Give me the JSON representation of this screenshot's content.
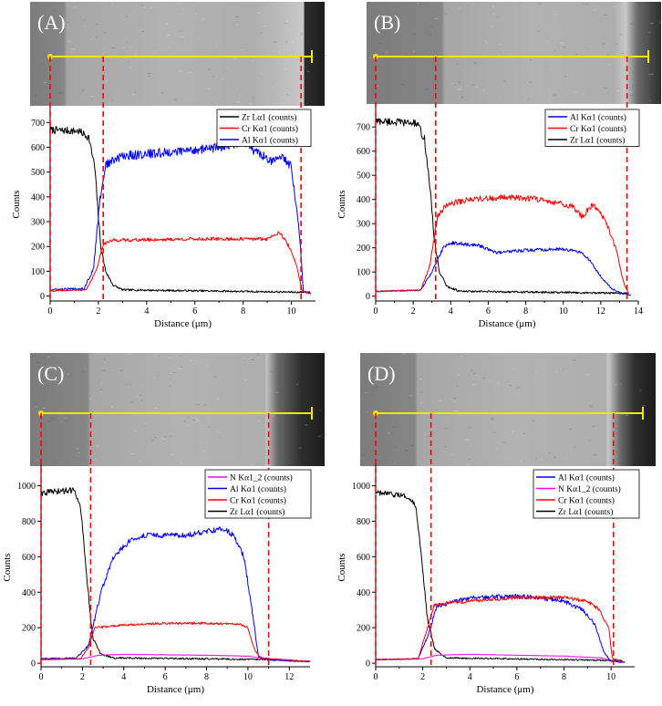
{
  "chart_data": [
    {
      "type": "line",
      "panel_label": "(A)",
      "xlabel": "Distance (μm)",
      "ylabel": "Counts",
      "xlim": [
        0,
        11
      ],
      "ylim": [
        -20,
        760
      ],
      "xticks": [
        0,
        2,
        4,
        6,
        8,
        10
      ],
      "yticks": [
        0,
        100,
        200,
        300,
        400,
        500,
        600,
        700
      ],
      "markers_x": [
        0,
        2.2,
        10.4
      ],
      "legend": [
        {
          "name": "Zr Lα1 (counts)",
          "color": "#000000"
        },
        {
          "name": "Cr Kα1 (counts)",
          "color": "#ff0000"
        },
        {
          "name": "Al Kα1 (counts)",
          "color": "#0000ff"
        }
      ],
      "series": [
        {
          "name": "Zr Lα1 (counts)",
          "color": "#000000",
          "noise": 30,
          "points": [
            [
              0,
              670
            ],
            [
              1.2,
              665
            ],
            [
              1.6,
              640
            ],
            [
              1.85,
              520
            ],
            [
              2.0,
              320
            ],
            [
              2.1,
              200
            ],
            [
              2.3,
              100
            ],
            [
              2.6,
              45
            ],
            [
              3.0,
              25
            ],
            [
              10.8,
              15
            ]
          ]
        },
        {
          "name": "Al Kα1 (counts)",
          "color": "#0000ff",
          "noise": 38,
          "points": [
            [
              0,
              25
            ],
            [
              1.4,
              30
            ],
            [
              1.8,
              110
            ],
            [
              2.05,
              380
            ],
            [
              2.3,
              530
            ],
            [
              3,
              565
            ],
            [
              5,
              580
            ],
            [
              7,
              600
            ],
            [
              8.0,
              620
            ],
            [
              8.5,
              585
            ],
            [
              9.3,
              540
            ],
            [
              9.6,
              570
            ],
            [
              10.0,
              520
            ],
            [
              10.3,
              300
            ],
            [
              10.5,
              20
            ],
            [
              10.8,
              10
            ]
          ]
        },
        {
          "name": "Cr Kα1 (counts)",
          "color": "#ff0000",
          "noise": 18,
          "points": [
            [
              0,
              20
            ],
            [
              1.5,
              25
            ],
            [
              1.9,
              100
            ],
            [
              2.2,
              210
            ],
            [
              2.6,
              225
            ],
            [
              6,
              230
            ],
            [
              9.0,
              230
            ],
            [
              9.5,
              260
            ],
            [
              9.9,
              200
            ],
            [
              10.2,
              130
            ],
            [
              10.45,
              20
            ],
            [
              10.8,
              10
            ]
          ]
        }
      ]
    },
    {
      "type": "line",
      "panel_label": "(B)",
      "xlabel": "Distance (μm)",
      "ylabel": "Counts",
      "xlim": [
        0,
        14
      ],
      "ylim": [
        -20,
        780
      ],
      "xticks": [
        0,
        2,
        4,
        6,
        8,
        10,
        12,
        14
      ],
      "yticks": [
        0,
        100,
        200,
        300,
        400,
        500,
        600,
        700
      ],
      "markers_x": [
        0,
        3.2,
        13.4
      ],
      "legend": [
        {
          "name": "Al Kα1 (counts)",
          "color": "#0000ff"
        },
        {
          "name": "Cr Kα1 (counts)",
          "color": "#ff0000"
        },
        {
          "name": "Zr Lα1 (counts)",
          "color": "#000000"
        }
      ],
      "series": [
        {
          "name": "Zr Lα1 (counts)",
          "color": "#000000",
          "noise": 32,
          "points": [
            [
              0,
              725
            ],
            [
              2.2,
              715
            ],
            [
              2.6,
              650
            ],
            [
              2.9,
              450
            ],
            [
              3.1,
              250
            ],
            [
              3.4,
              100
            ],
            [
              3.8,
              40
            ],
            [
              4.5,
              20
            ],
            [
              13.5,
              12
            ]
          ]
        },
        {
          "name": "Al Kα1 (counts)",
          "color": "#0000ff",
          "noise": 20,
          "points": [
            [
              0,
              20
            ],
            [
              2.4,
              25
            ],
            [
              3.0,
              100
            ],
            [
              3.6,
              200
            ],
            [
              4,
              220
            ],
            [
              5.5,
              210
            ],
            [
              6.5,
              180
            ],
            [
              8,
              190
            ],
            [
              10,
              195
            ],
            [
              11,
              180
            ],
            [
              11.5,
              140
            ],
            [
              12,
              80
            ],
            [
              12.6,
              30
            ],
            [
              13.2,
              10
            ],
            [
              13.6,
              5
            ]
          ]
        },
        {
          "name": "Cr Kα1 (counts)",
          "color": "#ff0000",
          "noise": 24,
          "points": [
            [
              0,
              20
            ],
            [
              2.4,
              25
            ],
            [
              2.9,
              130
            ],
            [
              3.3,
              330
            ],
            [
              3.8,
              380
            ],
            [
              5,
              400
            ],
            [
              7,
              410
            ],
            [
              9,
              400
            ],
            [
              10.5,
              370
            ],
            [
              11.0,
              330
            ],
            [
              11.6,
              380
            ],
            [
              12.2,
              320
            ],
            [
              12.8,
              200
            ],
            [
              13.2,
              60
            ],
            [
              13.5,
              8
            ]
          ]
        }
      ]
    },
    {
      "type": "line",
      "panel_label": "(C)",
      "xlabel": "Distance (μm)",
      "ylabel": "Counts",
      "xlim": [
        0,
        13
      ],
      "ylim": [
        -20,
        1100
      ],
      "xticks": [
        0,
        2,
        4,
        6,
        8,
        10,
        12
      ],
      "yticks": [
        0,
        200,
        400,
        600,
        800,
        1000
      ],
      "markers_x": [
        0,
        2.4,
        11.0
      ],
      "legend": [
        {
          "name": "N Kα1_2 (counts)",
          "color": "#ff00ff"
        },
        {
          "name": "Al Kα1 (counts)",
          "color": "#0000ff"
        },
        {
          "name": "Cr Kα1 (counts)",
          "color": "#ff0000"
        },
        {
          "name": "Zr Lα1 (counts)",
          "color": "#000000"
        }
      ],
      "series": [
        {
          "name": "Zr Lα1 (counts)",
          "color": "#000000",
          "noise": 35,
          "points": [
            [
              0,
              960
            ],
            [
              1.6,
              975
            ],
            [
              1.9,
              900
            ],
            [
              2.2,
              500
            ],
            [
              2.5,
              140
            ],
            [
              2.9,
              50
            ],
            [
              3.5,
              30
            ],
            [
              10,
              22
            ],
            [
              11,
              20
            ],
            [
              12,
              15
            ],
            [
              13,
              10
            ]
          ]
        },
        {
          "name": "N Kα1_2 (counts)",
          "color": "#ff00ff",
          "noise": 9,
          "points": [
            [
              0,
              20
            ],
            [
              2,
              25
            ],
            [
              2.8,
              45
            ],
            [
              4,
              50
            ],
            [
              8,
              45
            ],
            [
              10,
              40
            ],
            [
              10.8,
              25
            ],
            [
              12,
              15
            ],
            [
              13,
              10
            ]
          ]
        },
        {
          "name": "Al Kα1 (counts)",
          "color": "#0000ff",
          "noise": 30,
          "points": [
            [
              0,
              25
            ],
            [
              1.7,
              30
            ],
            [
              2.3,
              100
            ],
            [
              2.9,
              400
            ],
            [
              3.5,
              600
            ],
            [
              4.3,
              690
            ],
            [
              5,
              720
            ],
            [
              7,
              720
            ],
            [
              8.8,
              760
            ],
            [
              9.3,
              720
            ],
            [
              9.8,
              600
            ],
            [
              10.2,
              300
            ],
            [
              10.5,
              40
            ],
            [
              11,
              20
            ],
            [
              13,
              10
            ]
          ]
        },
        {
          "name": "Cr Kα1 (counts)",
          "color": "#ff0000",
          "noise": 16,
          "points": [
            [
              0,
              20
            ],
            [
              1.9,
              25
            ],
            [
              2.3,
              90
            ],
            [
              2.6,
              200
            ],
            [
              4,
              215
            ],
            [
              6,
              225
            ],
            [
              8,
              225
            ],
            [
              9.6,
              220
            ],
            [
              10.0,
              200
            ],
            [
              10.3,
              80
            ],
            [
              10.6,
              30
            ],
            [
              13,
              10
            ]
          ]
        }
      ]
    },
    {
      "type": "line",
      "panel_label": "(D)",
      "xlabel": "Distance (μm)",
      "ylabel": "Counts",
      "xlim": [
        0,
        11
      ],
      "ylim": [
        -20,
        1100
      ],
      "xticks": [
        0,
        2,
        4,
        6,
        8,
        10
      ],
      "yticks": [
        0,
        200,
        400,
        600,
        800,
        1000
      ],
      "markers_x": [
        0,
        2.35,
        10.1
      ],
      "legend": [
        {
          "name": "Al Kα1 (counts)",
          "color": "#0000ff"
        },
        {
          "name": "N Kα1_2 (counts)",
          "color": "#ff00ff"
        },
        {
          "name": "Cr Kα1 (counts)",
          "color": "#ff0000"
        },
        {
          "name": "Zr Lα1 (counts)",
          "color": "#000000"
        }
      ],
      "series": [
        {
          "name": "Zr Lα1 (counts)",
          "color": "#000000",
          "noise": 30,
          "points": [
            [
              0,
              960
            ],
            [
              1.4,
              940
            ],
            [
              1.7,
              880
            ],
            [
              1.95,
              600
            ],
            [
              2.2,
              250
            ],
            [
              2.5,
              80
            ],
            [
              3,
              30
            ],
            [
              10.5,
              15
            ]
          ]
        },
        {
          "name": "N Kα1_2 (counts)",
          "color": "#ff00ff",
          "noise": 8,
          "points": [
            [
              0,
              20
            ],
            [
              2,
              25
            ],
            [
              2.6,
              45
            ],
            [
              4,
              50
            ],
            [
              8,
              40
            ],
            [
              9.6,
              30
            ],
            [
              10.2,
              10
            ],
            [
              10.6,
              5
            ]
          ]
        },
        {
          "name": "Al Kα1 (counts)",
          "color": "#0000ff",
          "noise": 24,
          "points": [
            [
              0,
              20
            ],
            [
              1.8,
              25
            ],
            [
              2.2,
              150
            ],
            [
              2.6,
              320
            ],
            [
              4,
              370
            ],
            [
              6,
              380
            ],
            [
              8,
              350
            ],
            [
              8.8,
              300
            ],
            [
              9.3,
              220
            ],
            [
              9.7,
              60
            ],
            [
              10,
              10
            ],
            [
              10.6,
              5
            ]
          ]
        },
        {
          "name": "Cr Kα1 (counts)",
          "color": "#ff0000",
          "noise": 20,
          "points": [
            [
              0,
              20
            ],
            [
              1.8,
              25
            ],
            [
              2.2,
              200
            ],
            [
              2.5,
              330
            ],
            [
              4,
              350
            ],
            [
              6,
              370
            ],
            [
              8,
              370
            ],
            [
              9.0,
              350
            ],
            [
              9.5,
              300
            ],
            [
              9.9,
              200
            ],
            [
              10.05,
              30
            ],
            [
              10.5,
              5
            ]
          ]
        }
      ]
    }
  ]
}
